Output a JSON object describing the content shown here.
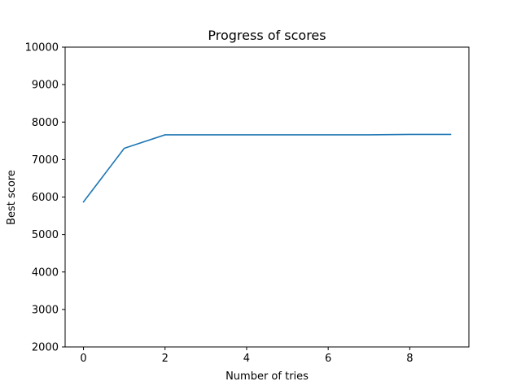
{
  "chart_data": {
    "type": "line",
    "title": "Progress of scores",
    "xlabel": "Number of tries",
    "ylabel": "Best score",
    "xlim": [
      -0.45,
      9.45
    ],
    "ylim": [
      2000,
      10000
    ],
    "xticks": [
      0,
      2,
      4,
      6,
      8
    ],
    "xtick_labels": [
      "0",
      "2",
      "4",
      "6",
      "8"
    ],
    "yticks": [
      2000,
      3000,
      4000,
      5000,
      6000,
      7000,
      8000,
      9000,
      10000
    ],
    "ytick_labels": [
      "2000",
      "3000",
      "4000",
      "5000",
      "6000",
      "7000",
      "8000",
      "9000",
      "10000"
    ],
    "grid": false,
    "series": [
      {
        "x": [
          0,
          1,
          2,
          3,
          4,
          5,
          6,
          7,
          8,
          9
        ],
        "values": [
          5870,
          7300,
          7660,
          7660,
          7660,
          7660,
          7660,
          7660,
          7670,
          7670
        ],
        "color": "#1f77b4"
      }
    ]
  }
}
